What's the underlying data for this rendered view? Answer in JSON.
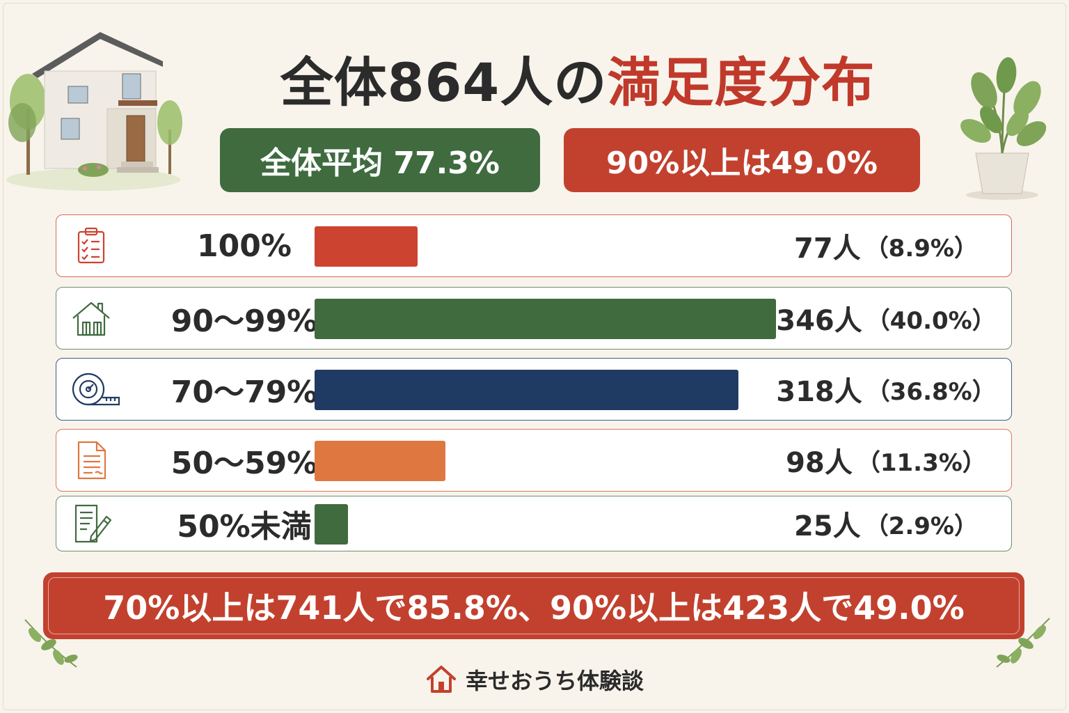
{
  "title": {
    "part1": "全体864人の",
    "part2": "満足度分布"
  },
  "badges": {
    "average": "全体平均 77.3%",
    "top": "90%以上は49.0%"
  },
  "colors": {
    "red": "#c2412e",
    "green": "#3f6b3f",
    "navy": "#1f3b63",
    "orange": "#df7740",
    "background": "#f8f4ec"
  },
  "chart_data": {
    "type": "bar",
    "title": "全体864人の満足度分布",
    "total": 864,
    "categories": [
      "100%",
      "90〜99%",
      "70〜79%",
      "50〜59%",
      "50%未満"
    ],
    "values": [
      77,
      346,
      318,
      98,
      25
    ],
    "percents": [
      8.9,
      40.0,
      36.8,
      11.3,
      2.9
    ],
    "max_value": 346,
    "rows": [
      {
        "label": "100%",
        "count": "77人",
        "pct": "（8.9%）",
        "value": 77,
        "color": "#cc4330",
        "border": "#d46a5c",
        "icon": "clipboard-checklist-icon"
      },
      {
        "label": "90〜99%",
        "count": "346人",
        "pct": "（40.0%）",
        "value": 346,
        "color": "#3f6b3f",
        "border": "#6f8f6f",
        "icon": "house-icon"
      },
      {
        "label": "70〜79%",
        "count": "318人",
        "pct": "（36.8%）",
        "value": 318,
        "color": "#1f3b63",
        "border": "#3f5b86",
        "icon": "tape-measure-icon"
      },
      {
        "label": "50〜59%",
        "count": "98人",
        "pct": "（11.3%）",
        "value": 98,
        "color": "#df7740",
        "border": "#d9785f",
        "icon": "document-icon"
      },
      {
        "label": "50%未満",
        "count": "25人",
        "pct": "（2.9%）",
        "value": 25,
        "color": "#3f6b3f",
        "border": "#6f8f6f",
        "icon": "note-pencil-icon"
      }
    ]
  },
  "summary": "70%以上は741人で85.8%、90%以上は423人で49.0%",
  "footer": {
    "brand": "幸せおうち体験談",
    "icon": "house-logo-icon"
  }
}
